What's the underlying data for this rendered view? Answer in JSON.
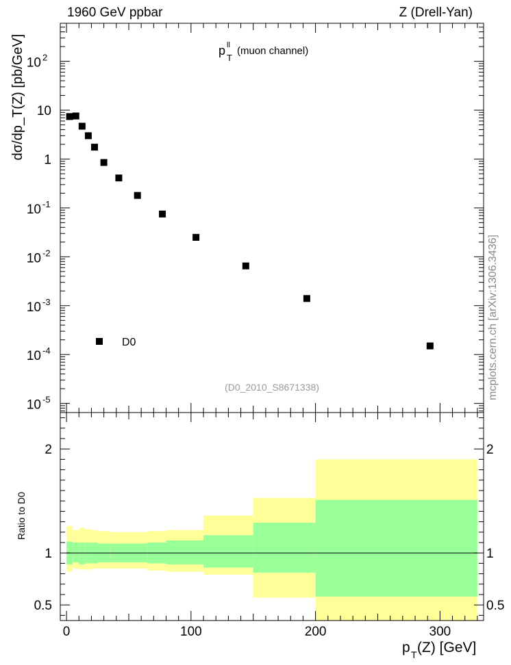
{
  "header": {
    "energy_label": "1960 GeV ppbar",
    "process_label": "Z (Drell-Yan)"
  },
  "side_label": "mcplots.cern.ch [arXiv:1306.3436]",
  "chart_data": [
    {
      "type": "scatter",
      "panel": "main",
      "title_main": "p",
      "title_sup": "ll",
      "title_sub": "T",
      "title_rest": "(muon channel)",
      "analysis_tag": "(D0_2010_S8671338)",
      "ylabel": "dσ/dp_T(Z) [pb/GeV]",
      "yscale": "log",
      "ylim": [
        6.5e-06,
        600
      ],
      "xlim": [
        -5,
        335
      ],
      "y_ticks": [
        {
          "base": "10",
          "exp": "-5",
          "value": 1e-05
        },
        {
          "base": "10",
          "exp": "-4",
          "value": 0.0001
        },
        {
          "base": "10",
          "exp": "-3",
          "value": 0.001
        },
        {
          "base": "10",
          "exp": "-2",
          "value": 0.01
        },
        {
          "base": "10",
          "exp": "-1",
          "value": 0.1
        },
        {
          "base": "1",
          "exp": "",
          "value": 1
        },
        {
          "base": "10",
          "exp": "",
          "value": 10
        },
        {
          "base": "10",
          "exp": "2",
          "value": 100
        }
      ],
      "legend": {
        "label": "D0",
        "position": "lower-left"
      },
      "series": [
        {
          "name": "D0",
          "x": [
            2.5,
            7.5,
            12.5,
            17.5,
            22.5,
            30,
            42,
            57,
            77,
            104,
            144,
            193,
            292
          ],
          "y": [
            7.4,
            7.6,
            4.7,
            3.0,
            1.75,
            0.85,
            0.41,
            0.18,
            0.075,
            0.025,
            0.0065,
            0.0014,
            0.00015
          ]
        }
      ]
    },
    {
      "type": "area",
      "panel": "ratio",
      "ylabel": "Ratio to D0",
      "ylim": [
        0.35,
        2.35
      ],
      "xlim": [
        -5,
        335
      ],
      "y_ticks": [
        "0.5",
        "1",
        "2"
      ],
      "y_tick_values": [
        0.5,
        1,
        2
      ],
      "x_ticks": [
        "0",
        "100",
        "200",
        "300"
      ],
      "x_tick_values": [
        0,
        100,
        200,
        300
      ],
      "xlabel_main": "p",
      "xlabel_sub": "T",
      "xlabel_rest": "(Z) [GeV]",
      "reference_line": 1,
      "colors": {
        "outer_band": "#ffff99",
        "inner_band": "#99ff99"
      },
      "bands": [
        {
          "x0": 0,
          "x1": 5,
          "stat_lo": 0.89,
          "stat_hi": 1.11,
          "tot_lo": 0.82,
          "tot_hi": 1.26
        },
        {
          "x0": 5,
          "x1": 10,
          "stat_lo": 0.91,
          "stat_hi": 1.1,
          "tot_lo": 0.85,
          "tot_hi": 1.22
        },
        {
          "x0": 10,
          "x1": 15,
          "stat_lo": 0.89,
          "stat_hi": 1.1,
          "tot_lo": 0.84,
          "tot_hi": 1.24
        },
        {
          "x0": 15,
          "x1": 20,
          "stat_lo": 0.9,
          "stat_hi": 1.1,
          "tot_lo": 0.84,
          "tot_hi": 1.23
        },
        {
          "x0": 20,
          "x1": 25,
          "stat_lo": 0.9,
          "stat_hi": 1.1,
          "tot_lo": 0.85,
          "tot_hi": 1.22
        },
        {
          "x0": 25,
          "x1": 35,
          "stat_lo": 0.91,
          "stat_hi": 1.09,
          "tot_lo": 0.85,
          "tot_hi": 1.21
        },
        {
          "x0": 35,
          "x1": 50,
          "stat_lo": 0.91,
          "stat_hi": 1.09,
          "tot_lo": 0.85,
          "tot_hi": 1.2
        },
        {
          "x0": 50,
          "x1": 65,
          "stat_lo": 0.91,
          "stat_hi": 1.09,
          "tot_lo": 0.85,
          "tot_hi": 1.2
        },
        {
          "x0": 65,
          "x1": 80,
          "stat_lo": 0.9,
          "stat_hi": 1.1,
          "tot_lo": 0.83,
          "tot_hi": 1.21
        },
        {
          "x0": 80,
          "x1": 110,
          "stat_lo": 0.89,
          "stat_hi": 1.12,
          "tot_lo": 0.82,
          "tot_hi": 1.22
        },
        {
          "x0": 110,
          "x1": 150,
          "stat_lo": 0.86,
          "stat_hi": 1.17,
          "tot_lo": 0.79,
          "tot_hi": 1.36
        },
        {
          "x0": 150,
          "x1": 200,
          "stat_lo": 0.81,
          "stat_hi": 1.29,
          "tot_lo": 0.57,
          "tot_hi": 1.53
        },
        {
          "x0": 200,
          "x1": 330,
          "stat_lo": 0.58,
          "stat_hi": 1.51,
          "tot_lo": 0.35,
          "tot_hi": 1.9
        }
      ]
    }
  ]
}
